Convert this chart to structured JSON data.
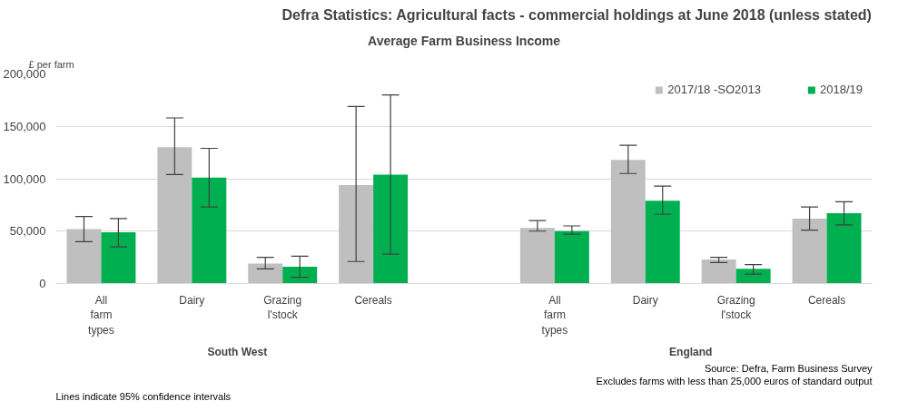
{
  "chart_data": {
    "type": "bar",
    "title": "Defra Statistics: Agricultural facts - commercial holdings at June 2018 (unless stated)",
    "subtitle": "Average Farm Business Income",
    "ylabel": "£ per farm",
    "categories": [
      "All farm types",
      "Dairy",
      "Grazing l'stock",
      "Cereals",
      null,
      "All farm types",
      "Dairy",
      "Grazing l'stock",
      "Cereals"
    ],
    "series": [
      {
        "name": "2017/18 -SO2013",
        "color": "#bfbfbf",
        "values": [
          52000,
          130000,
          19000,
          94000,
          null,
          53000,
          118000,
          23000,
          62000
        ],
        "errors": [
          [
            40000,
            64000
          ],
          [
            104000,
            158000
          ],
          [
            14000,
            25000
          ],
          [
            21000,
            169000
          ],
          null,
          [
            50000,
            60000
          ],
          [
            105000,
            132000
          ],
          [
            20000,
            25000
          ],
          [
            51000,
            73000
          ]
        ]
      },
      {
        "name": "2018/19",
        "color": "#00b050",
        "values": [
          49000,
          101000,
          16000,
          104000,
          null,
          50000,
          79000,
          14000,
          67000
        ],
        "errors": [
          [
            35000,
            62000
          ],
          [
            73000,
            129000
          ],
          [
            6000,
            26000
          ],
          [
            28000,
            180000
          ],
          null,
          [
            47000,
            55000
          ],
          [
            66000,
            93000
          ],
          [
            9000,
            18000
          ],
          [
            56000,
            78000
          ]
        ]
      }
    ],
    "ylim": [
      0,
      200000
    ],
    "yticks": [
      0,
      {
        "value": 50000,
        "label": "50,000"
      },
      {
        "value": 100000,
        "label": "100,000"
      },
      {
        "value": 150000,
        "label": "150,000"
      },
      {
        "value": 200000,
        "label": "200,000"
      }
    ],
    "grid": "y",
    "legend": "top right",
    "annotations": [
      "South West",
      "England",
      "Source: Defra, Farm Business Survey",
      "Excludes farms with less than 25,000 euros of standard output",
      "Lines indicate 95% confidence intervals"
    ]
  }
}
